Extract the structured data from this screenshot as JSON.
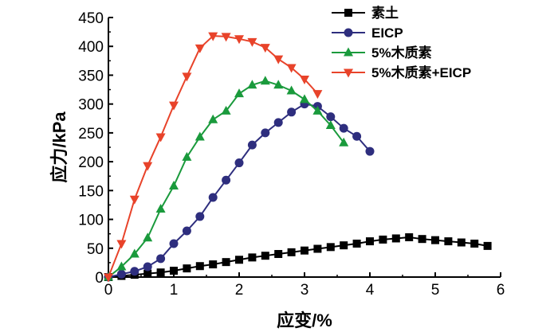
{
  "chart_data": {
    "type": "line",
    "title": "",
    "xlabel": "应变/%",
    "ylabel": "应力/kPa",
    "xlim": [
      0,
      6
    ],
    "ylim": [
      0,
      450
    ],
    "xticks": [
      0,
      1,
      2,
      3,
      4,
      5,
      6
    ],
    "yticks": [
      0,
      50,
      100,
      150,
      200,
      250,
      300,
      350,
      400,
      450
    ],
    "legend_position": "top-right",
    "series": [
      {
        "name": "素土",
        "color": "#000000",
        "marker": "square",
        "x": [
          0,
          0.2,
          0.4,
          0.6,
          0.8,
          1.0,
          1.2,
          1.4,
          1.6,
          1.8,
          2.0,
          2.2,
          2.4,
          2.6,
          2.8,
          3.0,
          3.2,
          3.4,
          3.6,
          3.8,
          4.0,
          4.2,
          4.4,
          4.6,
          4.8,
          5.0,
          5.2,
          5.4,
          5.6,
          5.8
        ],
        "y": [
          0,
          2,
          4,
          6,
          8,
          11,
          15,
          19,
          22,
          26,
          30,
          34,
          37,
          40,
          43,
          46,
          49,
          52,
          55,
          58,
          62,
          65,
          67,
          69,
          66,
          64,
          62,
          60,
          58,
          54
        ]
      },
      {
        "name": "EICP",
        "color": "#2e2e7e",
        "marker": "circle",
        "x": [
          0,
          0.2,
          0.4,
          0.6,
          0.8,
          1.0,
          1.2,
          1.4,
          1.6,
          1.8,
          2.0,
          2.2,
          2.4,
          2.6,
          2.8,
          3.0,
          3.2,
          3.4,
          3.6,
          3.8,
          4.0
        ],
        "y": [
          0,
          5,
          10,
          18,
          32,
          58,
          80,
          105,
          138,
          168,
          198,
          229,
          250,
          268,
          286,
          300,
          296,
          278,
          258,
          244,
          218
        ]
      },
      {
        "name": "5%木质素",
        "color": "#1a9a3c",
        "marker": "triangle-up",
        "x": [
          0,
          0.2,
          0.4,
          0.6,
          0.8,
          1.0,
          1.2,
          1.4,
          1.6,
          1.8,
          2.0,
          2.2,
          2.4,
          2.6,
          2.8,
          3.0,
          3.2,
          3.4,
          3.6
        ],
        "y": [
          0,
          18,
          40,
          68,
          118,
          158,
          208,
          243,
          273,
          288,
          318,
          333,
          340,
          333,
          323,
          308,
          288,
          263,
          233
        ]
      },
      {
        "name": "5%木质素+EICP",
        "color": "#e8432a",
        "marker": "triangle-down",
        "x": [
          0,
          0.2,
          0.4,
          0.6,
          0.8,
          1.0,
          1.2,
          1.4,
          1.6,
          1.8,
          2.0,
          2.2,
          2.4,
          2.6,
          2.8,
          3.0,
          3.2
        ],
        "y": [
          0,
          58,
          135,
          193,
          243,
          298,
          348,
          397,
          418,
          417,
          413,
          408,
          398,
          378,
          363,
          343,
          318
        ]
      }
    ]
  }
}
